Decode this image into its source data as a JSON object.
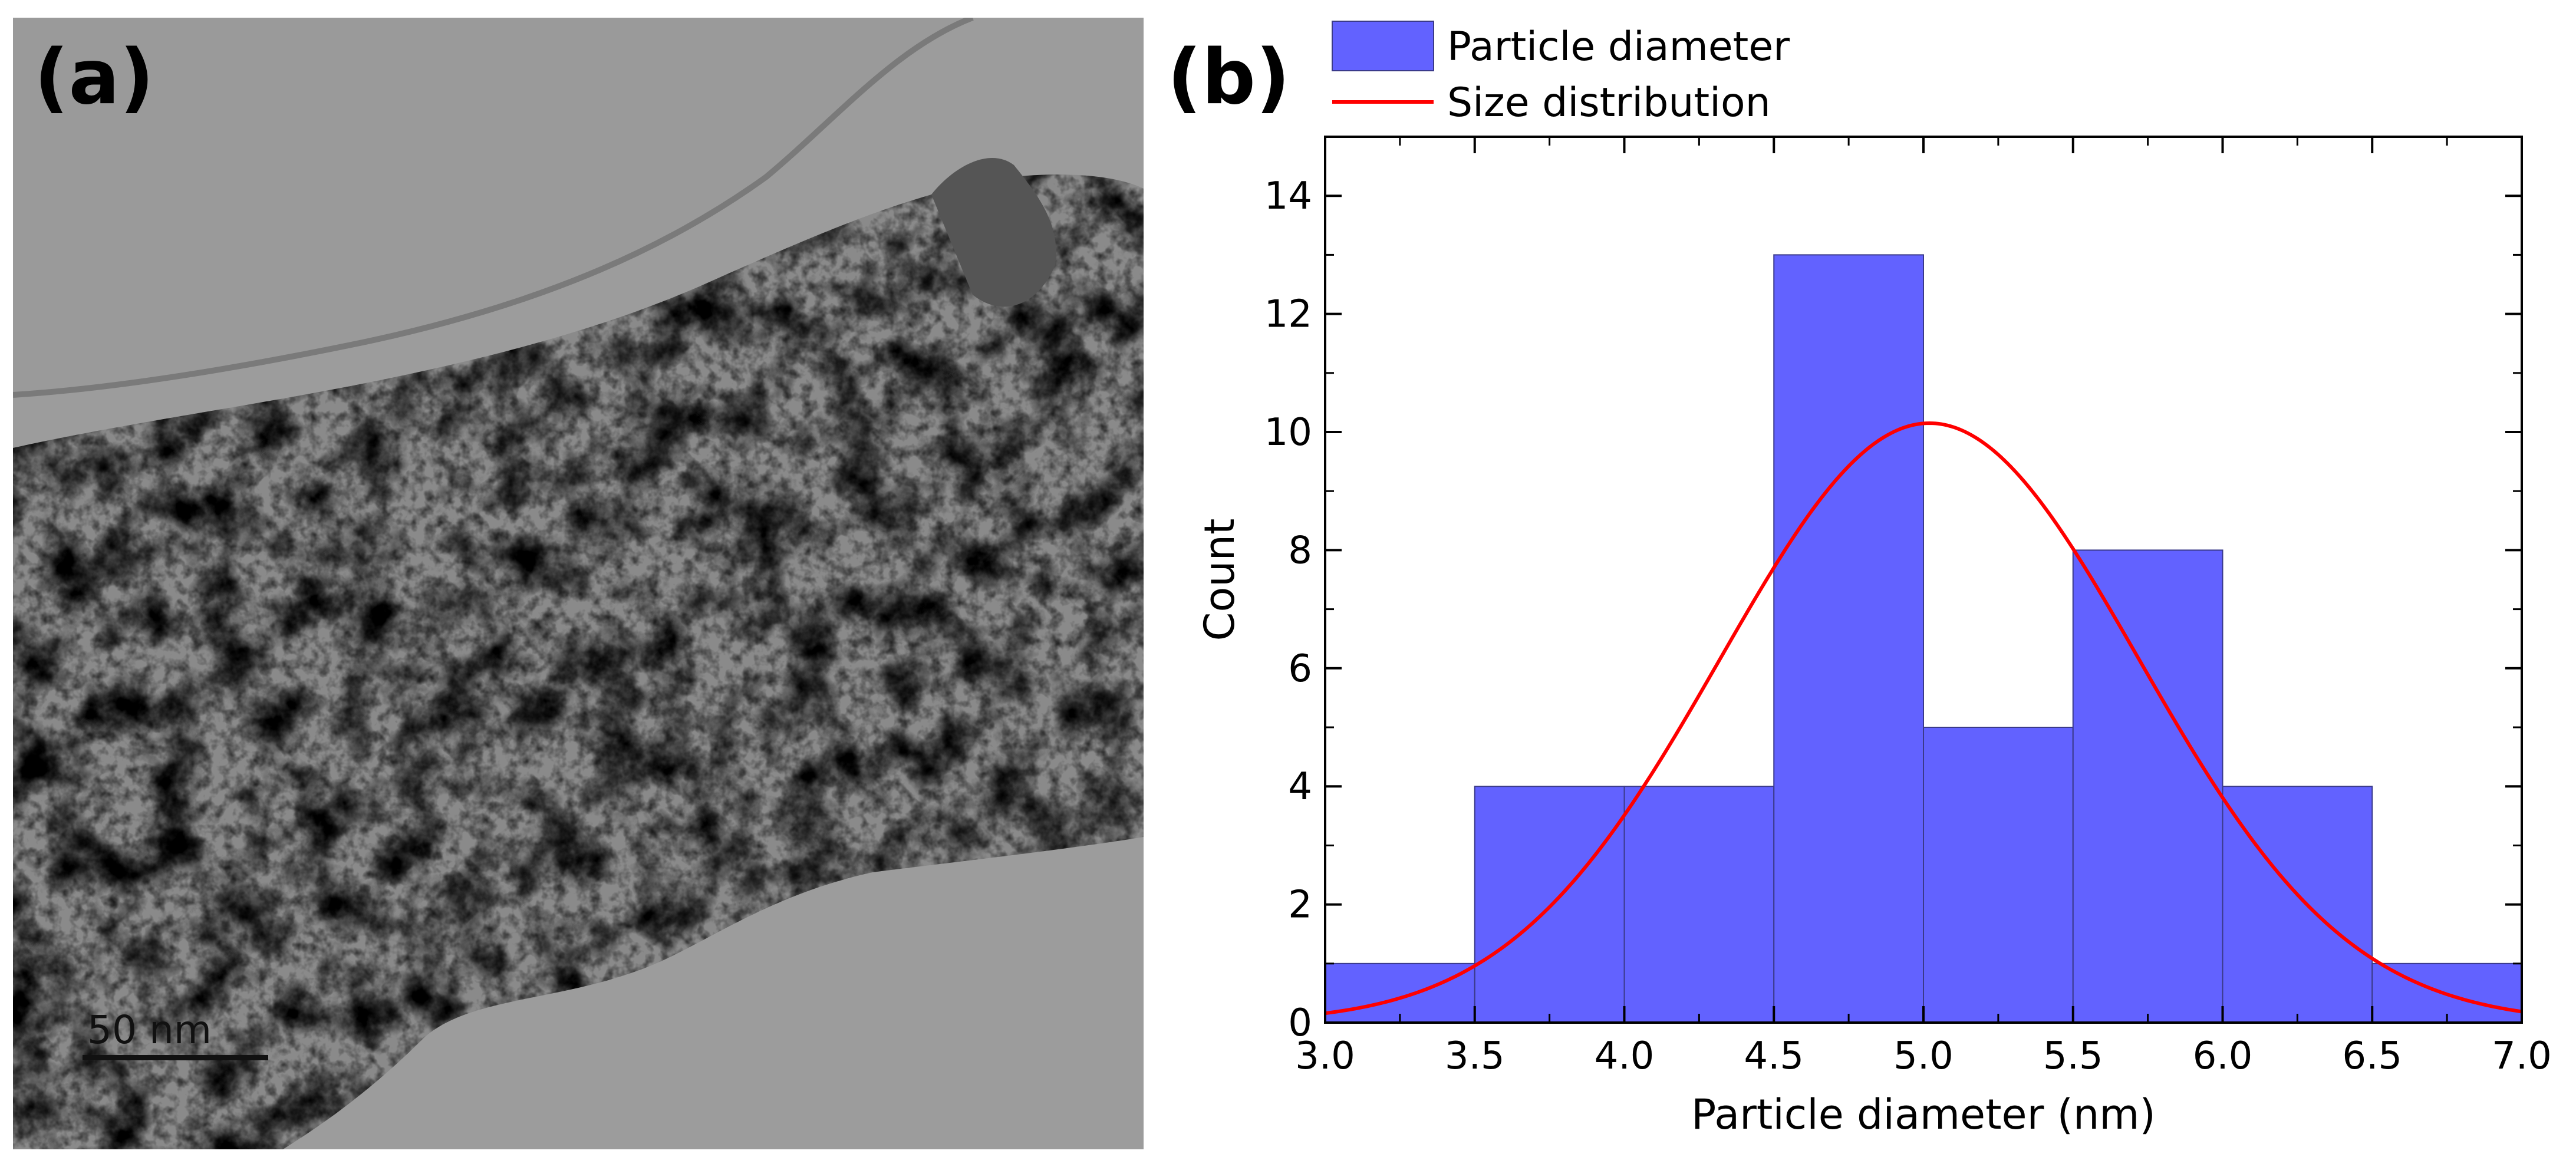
{
  "panel_a": {
    "label": "(a)",
    "scale_bar": {
      "text": "50 nm"
    },
    "image_description_icon": "tem-micrograph"
  },
  "panel_b": {
    "label": "(b)"
  },
  "chart_data": {
    "type": "bar",
    "title": "",
    "xlabel": "Particle diameter (nm)",
    "ylabel": "Count",
    "xlim": [
      3.0,
      7.0
    ],
    "ylim": [
      0,
      15
    ],
    "x_ticks": [
      "3.0",
      "3.5",
      "4.0",
      "4.5",
      "5.0",
      "5.5",
      "6.0",
      "6.5",
      "7.0"
    ],
    "y_ticks": [
      "0",
      "2",
      "4",
      "6",
      "8",
      "10",
      "12",
      "14"
    ],
    "bin_width": 0.5,
    "bins": [
      {
        "start": 3.0,
        "end": 3.5,
        "count": 1
      },
      {
        "start": 3.5,
        "end": 4.0,
        "count": 4
      },
      {
        "start": 4.0,
        "end": 4.5,
        "count": 4
      },
      {
        "start": 4.5,
        "end": 5.0,
        "count": 13
      },
      {
        "start": 5.0,
        "end": 5.5,
        "count": 5
      },
      {
        "start": 5.5,
        "end": 6.0,
        "count": 8
      },
      {
        "start": 6.0,
        "end": 6.5,
        "count": 4
      },
      {
        "start": 6.5,
        "end": 7.0,
        "count": 1
      }
    ],
    "fit": {
      "type": "gaussian",
      "mean": 5.02,
      "sigma": 0.7,
      "peak": 10.15
    },
    "legend": {
      "position": "top-left-outside",
      "entries": [
        {
          "name": "Particle diameter",
          "kind": "bar"
        },
        {
          "name": "Size distribution",
          "kind": "line"
        }
      ]
    },
    "colors": {
      "bar": "#6262ff",
      "bar_edge": "#3a3a8a",
      "fit": "#ff0000",
      "axis": "#000000"
    },
    "grid": false
  }
}
